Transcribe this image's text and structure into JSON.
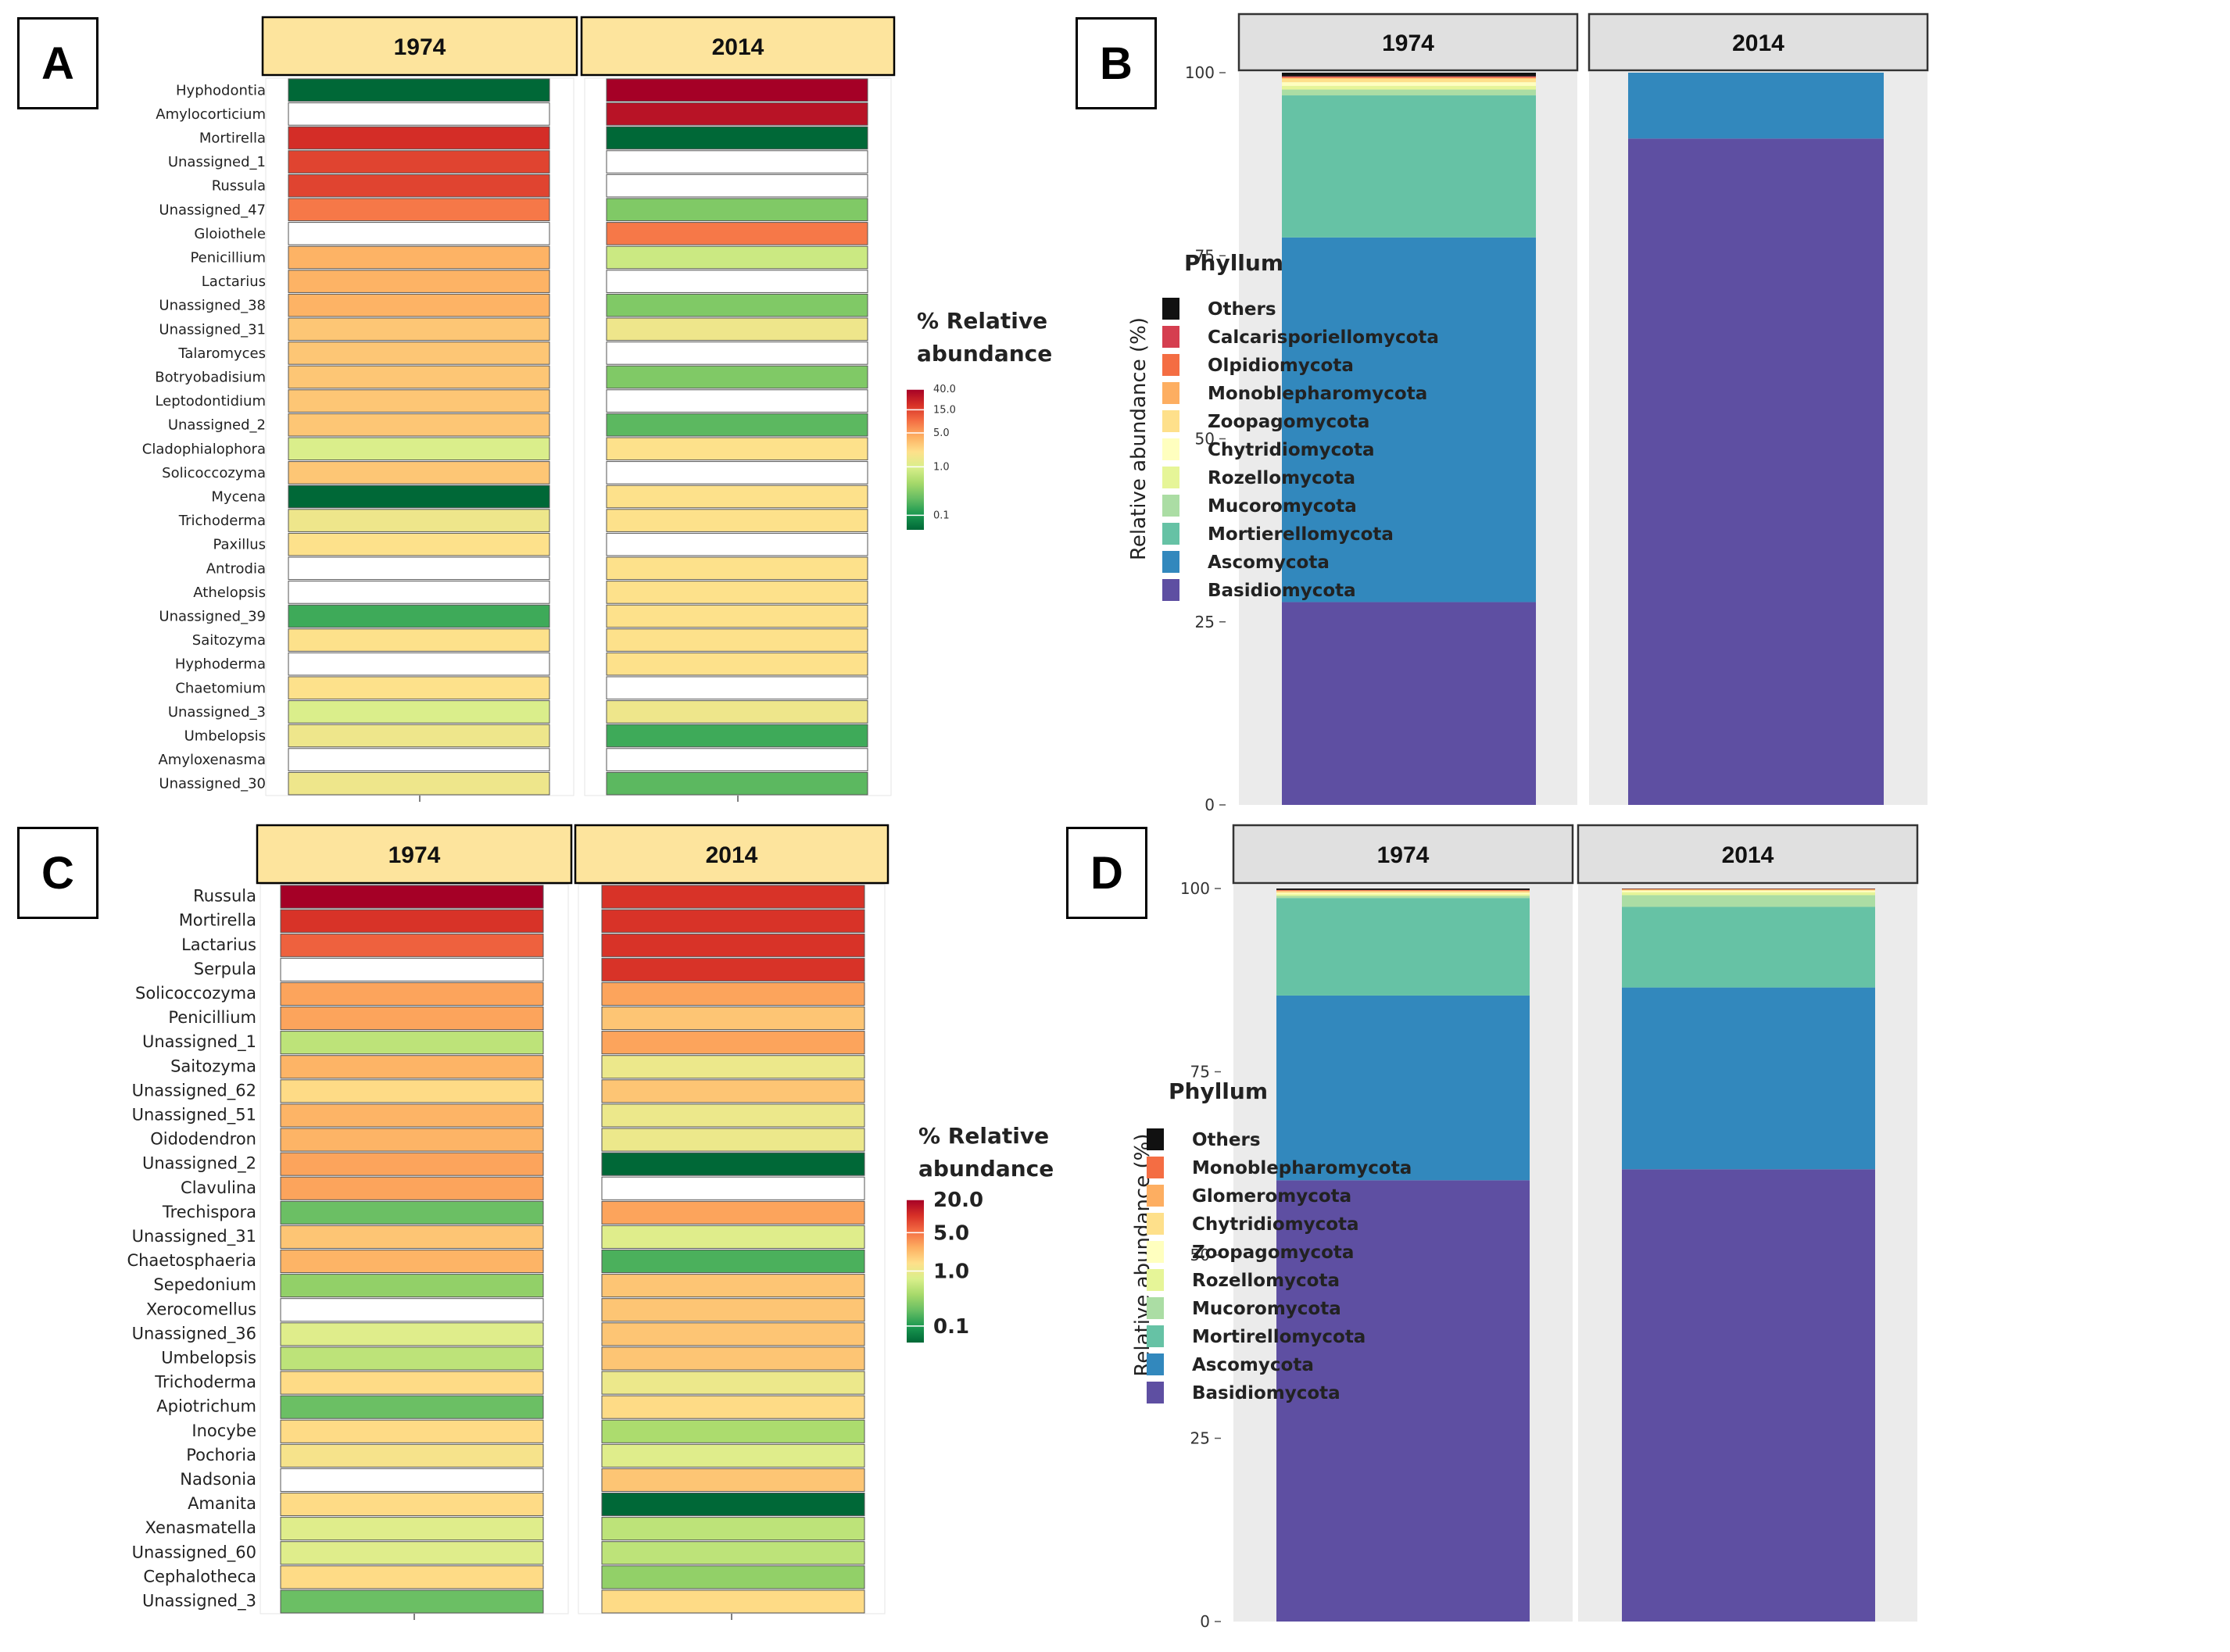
{
  "figure": {
    "panel_labels": [
      "A",
      "B",
      "C",
      "D"
    ],
    "colors": {
      "heat_high": "#a50026",
      "heat_mid_high": "#f46d43",
      "heat_mid": "#fdd17a",
      "heat_low_mid": "#d9ef8b",
      "heat_low": "#006837",
      "strip_heat": "#fde49d",
      "strip_bar": "#e0e0e0",
      "panel_bg": "#ebebeb"
    }
  },
  "chart_data": [
    {
      "id": "A",
      "type": "heatmap",
      "columns": [
        "1974",
        "2014"
      ],
      "legend_title": [
        "% Relative",
        "abundance"
      ],
      "legend_ticks": [
        "40.0",
        "15.0",
        "5.0",
        "1.0",
        "0.1"
      ],
      "legend_tick_values": [
        40,
        15,
        5,
        1,
        0.1
      ],
      "scale_max": 40,
      "rows": [
        "Hyphodontia",
        "Amylocorticium",
        "Mortirella",
        "Unassigned_1",
        "Russula",
        "Unassigned_47",
        "Gloiothele",
        "Penicillium",
        "Lactarius",
        "Unassigned_38",
        "Unassigned_31",
        "Talaromyces",
        "Botryobadisium",
        "Leptodontidium",
        "Unassigned_2",
        "Cladophialophora",
        "Solicoccozyma",
        "Mycena",
        "Trichoderma",
        "Paxillus",
        "Antrodia",
        "Athelopsis",
        "Unassigned_39",
        "Saitozyma",
        "Hyphoderma",
        "Chaetomium",
        "Unassigned_3",
        "Umbelopsis",
        "Amyloxenasma",
        "Unassigned_30"
      ],
      "values_1974": [
        0.05,
        null,
        20,
        15,
        15,
        8,
        null,
        4,
        4,
        4,
        3,
        3,
        3,
        3,
        3,
        1,
        3,
        0.05,
        1.5,
        2,
        null,
        null,
        0.15,
        2,
        null,
        2,
        1,
        1.5,
        null,
        1.5
      ],
      "values_2014": [
        40,
        30,
        0.05,
        null,
        null,
        0.3,
        8,
        0.8,
        null,
        0.3,
        1.5,
        null,
        0.3,
        null,
        0.2,
        2,
        null,
        2,
        2,
        null,
        2,
        2,
        2,
        2,
        2,
        null,
        1.5,
        0.15,
        null,
        0.2
      ]
    },
    {
      "id": "B",
      "type": "bar",
      "stacked": true,
      "categories": [
        "1974",
        "2014"
      ],
      "ylabel": "Relative abundance (%)",
      "ylim": [
        0,
        100
      ],
      "yticks": [
        0,
        25,
        50,
        75,
        100
      ],
      "legend_title": "Phyllum",
      "series": [
        {
          "name": "Basidiomycota",
          "color": "#5e4fa2",
          "values": [
            27.7,
            91.0
          ]
        },
        {
          "name": "Ascomycota",
          "color": "#3288bd",
          "values": [
            49.8,
            9.0
          ]
        },
        {
          "name": "Mortierellomycota",
          "color": "#66c2a5",
          "values": [
            19.4,
            0
          ]
        },
        {
          "name": "Mucoromycota",
          "color": "#abdda4",
          "values": [
            0.8,
            0
          ]
        },
        {
          "name": "Rozellomycota",
          "color": "#e6f598",
          "values": [
            0.5,
            0
          ]
        },
        {
          "name": "Chytridiomycota",
          "color": "#ffffbf",
          "values": [
            0.5,
            0
          ]
        },
        {
          "name": "Zoopagomycota",
          "color": "#fee08b",
          "values": [
            0.5,
            0
          ]
        },
        {
          "name": "Monoblepharomycota",
          "color": "#fdae61",
          "values": [
            0.1,
            0
          ]
        },
        {
          "name": "Olpidiomycota",
          "color": "#f46d43",
          "values": [
            0.1,
            0
          ]
        },
        {
          "name": "Calcarisporiellomycota",
          "color": "#d53e4f",
          "values": [
            0.1,
            0
          ]
        },
        {
          "name": "Others",
          "color": "#111111",
          "values": [
            0.5,
            0
          ]
        }
      ]
    },
    {
      "id": "C",
      "type": "heatmap",
      "columns": [
        "1974",
        "2014"
      ],
      "legend_title": [
        "% Relative",
        "abundance"
      ],
      "legend_ticks": [
        "20.0",
        "5.0",
        "1.0",
        "0.1"
      ],
      "legend_tick_values": [
        20,
        5,
        1,
        0.1
      ],
      "scale_max": 20,
      "rows": [
        "Russula",
        "Mortirella",
        "Lactarius",
        "Serpula",
        "Solicoccozyma",
        "Penicillium",
        "Unassigned_1",
        "Saitozyma",
        "Unassigned_62",
        "Unassigned_51",
        "Oidodendron",
        "Unassigned_2",
        "Clavulina",
        "Trechispora",
        "Unassigned_31",
        "Chaetosphaeria",
        "Sepedonium",
        "Xerocomellus",
        "Unassigned_36",
        "Umbelopsis",
        "Trichoderma",
        "Apiotrichum",
        "Inocybe",
        "Pochoria",
        "Nadsonia",
        "Amanita",
        "Xenasmatella",
        "Unassigned_60",
        "Cephalotheca",
        "Unassigned_3"
      ],
      "values_1974": [
        20,
        10,
        6,
        null,
        3,
        3,
        0.5,
        2.5,
        1.5,
        2.5,
        2.5,
        3,
        3,
        0.2,
        2,
        2.5,
        0.3,
        null,
        0.8,
        0.5,
        1.5,
        0.2,
        1.5,
        1.2,
        null,
        1.5,
        0.8,
        0.8,
        1.5,
        0.2
      ],
      "values_2014": [
        10,
        10,
        10,
        10,
        3,
        2,
        3,
        1,
        2,
        1,
        1,
        0.05,
        null,
        3,
        0.8,
        0.15,
        2,
        2,
        2,
        2,
        1,
        1.5,
        0.4,
        0.8,
        2,
        0.05,
        0.5,
        0.5,
        0.3,
        1.5
      ]
    },
    {
      "id": "D",
      "type": "bar",
      "stacked": true,
      "categories": [
        "1974",
        "2014"
      ],
      "ylabel": "Relative abundance (%)",
      "ylim": [
        0,
        100
      ],
      "yticks": [
        0,
        25,
        50,
        75,
        100
      ],
      "legend_title": "Phyllum",
      "series": [
        {
          "name": "Basidiomycota",
          "color": "#5e4fa2",
          "values": [
            60.2,
            61.7
          ]
        },
        {
          "name": "Ascomycota",
          "color": "#3288bd",
          "values": [
            25.2,
            24.8
          ]
        },
        {
          "name": "Mortirellomycota",
          "color": "#66c2a5",
          "values": [
            13.3,
            11.0
          ]
        },
        {
          "name": "Mucoromycota",
          "color": "#abdda4",
          "values": [
            0.3,
            1.6
          ]
        },
        {
          "name": "Rozellomycota",
          "color": "#e6f598",
          "values": [
            0.2,
            0.4
          ]
        },
        {
          "name": "Zoopagomycota",
          "color": "#ffffbf",
          "values": [
            0.2,
            0.2
          ]
        },
        {
          "name": "Chytridiomycota",
          "color": "#fee08b",
          "values": [
            0.2,
            0.1
          ]
        },
        {
          "name": "Glomeromycota",
          "color": "#fdae61",
          "values": [
            0.1,
            0.1
          ]
        },
        {
          "name": "Monoblepharomycota",
          "color": "#f46d43",
          "values": [
            0.1,
            0.05
          ]
        },
        {
          "name": "Others",
          "color": "#111111",
          "values": [
            0.2,
            0.05
          ]
        }
      ],
      "legend_order": [
        "Others",
        "Monoblepharomycota",
        "Glomeromycota",
        "Chytridiomycota",
        "Zoopagomycota",
        "Rozellomycota",
        "Mucoromycota",
        "Mortirellomycota",
        "Ascomycota",
        "Basidiomycota"
      ]
    }
  ]
}
